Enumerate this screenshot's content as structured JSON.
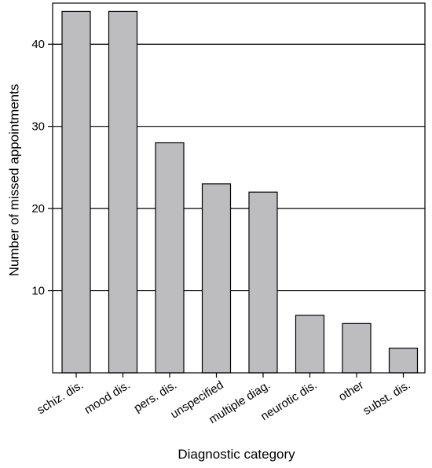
{
  "chart_data": {
    "type": "bar",
    "title": "",
    "xlabel": "Diagnostic category",
    "ylabel": "Number of missed appointments",
    "categories": [
      "schiz. dis.",
      "mood dis.",
      "pers. dis.",
      "unspecified",
      "multiple diag.",
      "neurotic dis.",
      "other",
      "subst. dis."
    ],
    "values": [
      44,
      44,
      28,
      23,
      22,
      7,
      6,
      3
    ],
    "ylim": [
      0,
      45
    ],
    "yticks": [
      10,
      20,
      30,
      40
    ],
    "grid": "horizontal",
    "legend": "none",
    "colors": {
      "bar_fill": "#bdbdc0",
      "bar_stroke": "#000000",
      "grid": "#000000"
    }
  }
}
